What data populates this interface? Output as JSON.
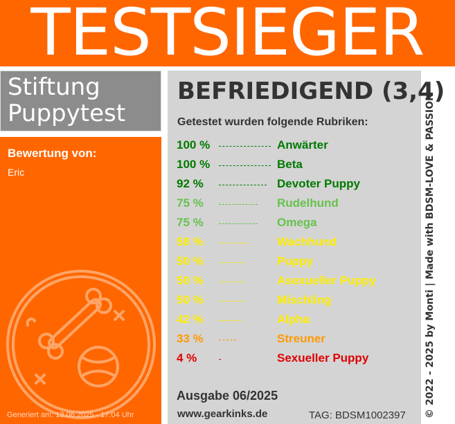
{
  "banner": {
    "title": "TESTSIEGER"
  },
  "brand": {
    "line1": "Stiftung",
    "line2": "Puppytest"
  },
  "rating": {
    "label": "Bewertung von:",
    "name": "Eric"
  },
  "generated": "Generiert am: 13.06.2025 - 17:04 Uhr",
  "verdict": "BEFRIEDIGEND (3,4)",
  "subhead": "Getestet wurden folgende Rubriken:",
  "rubrics": [
    {
      "pct": "100 %",
      "name": "Anwärter",
      "value": 100,
      "color": "#007a00"
    },
    {
      "pct": "100 %",
      "name": "Beta",
      "value": 100,
      "color": "#007a00"
    },
    {
      "pct": "92 %",
      "name": "Devoter Puppy",
      "value": 92,
      "color": "#007a00"
    },
    {
      "pct": "75 %",
      "name": "Rudelhund",
      "value": 75,
      "color": "#66c24d"
    },
    {
      "pct": "75 %",
      "name": "Omega",
      "value": 75,
      "color": "#66c24d"
    },
    {
      "pct": "58 %",
      "name": "Wachhund",
      "value": 58,
      "color": "#ffee00"
    },
    {
      "pct": "50 %",
      "name": "Puppy",
      "value": 50,
      "color": "#ffee00"
    },
    {
      "pct": "50 %",
      "name": "Asexueller Puppy",
      "value": 50,
      "color": "#ffee00"
    },
    {
      "pct": "50 %",
      "name": "Mischling",
      "value": 50,
      "color": "#ffee00"
    },
    {
      "pct": "42 %",
      "name": "Alpha",
      "value": 42,
      "color": "#ffee00"
    },
    {
      "pct": "33 %",
      "name": "Streuner",
      "value": 33,
      "color": "#ff9900"
    },
    {
      "pct": "4 %",
      "name": "Sexueller Puppy",
      "value": 4,
      "color": "#e00000"
    }
  ],
  "issue": "Ausgabe 06/2025",
  "website": "www.gearkinks.de",
  "tag": "TAG: BDSM1002397",
  "credit": "© 2022 - 2025 by Monti | Made with BDSM-LOVE & PASSION",
  "colors": {
    "accent": "#ff6600",
    "gray": "#8c8c8c",
    "panel": "#d4d4d4"
  }
}
